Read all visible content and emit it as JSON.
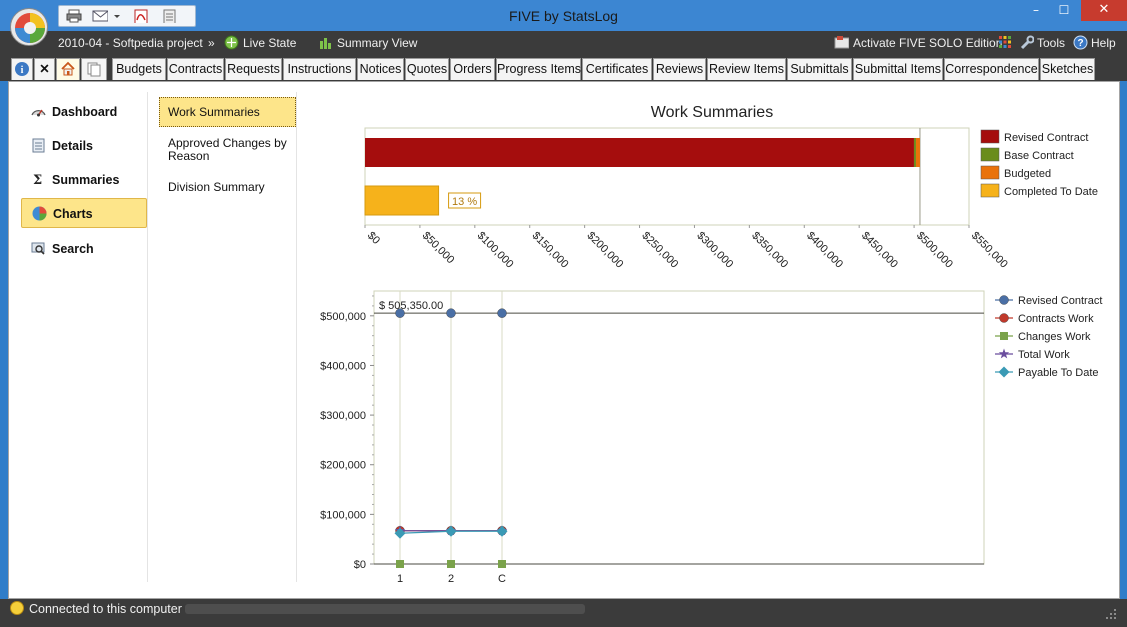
{
  "window": {
    "title": "FIVE by StatsLog",
    "controls": {
      "minimize": "–",
      "maximize": "☐",
      "close": "✕"
    }
  },
  "project_bar": {
    "project": "2010-04 - Softpedia project",
    "separator": "»",
    "live_state": "Live State",
    "summary_view": "Summary View",
    "activate": "Activate FIVE SOLO Edition",
    "tools": "Tools",
    "help": "Help"
  },
  "tabs": [
    "Budgets",
    "Contracts",
    "Requests",
    "Instructions",
    "Notices",
    "Quotes",
    "Orders",
    "Progress Items",
    "Certificates",
    "Reviews",
    "Review Items",
    "Submittals",
    "Submittal Items",
    "Correspondence",
    "Sketches"
  ],
  "icon_tabs": {
    "info": "i",
    "close": "✕"
  },
  "nav": {
    "items": [
      "Dashboard",
      "Details",
      "Summaries",
      "Charts",
      "Search"
    ],
    "active": "Charts"
  },
  "subnav": {
    "items": [
      "Work Summaries",
      "Approved Changes by Reason",
      "Division Summary"
    ],
    "active": "Work Summaries"
  },
  "status": {
    "text": "Connected to this computer"
  },
  "colors": {
    "revised_contract": "#a50d0d",
    "base_contract": "#6a8c1c",
    "budgeted": "#e9720b",
    "completed": "#f6b21b",
    "line_revised": "#4a6fa5",
    "line_contracts": "#c0392b",
    "line_changes": "#7aa24a",
    "line_total": "#6b4e9e",
    "line_payable": "#3a9ab5"
  },
  "chart_data": [
    {
      "type": "bar",
      "orientation": "horizontal",
      "title": "Work Summaries",
      "xlim": [
        0,
        550000
      ],
      "x_ticks": [
        "$0",
        "$50,000",
        "$100,000",
        "$150,000",
        "$200,000",
        "$250,000",
        "$300,000",
        "$350,000",
        "$400,000",
        "$450,000",
        "$500,000",
        "$550,000"
      ],
      "reference_line": 505350,
      "legend": [
        "Revised Contract",
        "Base Contract",
        "Budgeted",
        "Completed To Date"
      ],
      "legend_position": "right",
      "bars": [
        {
          "name": "Revised Contract",
          "value": 505350
        },
        {
          "name": "Base Contract",
          "value": 505350
        },
        {
          "name": "Budgeted",
          "value": 505350
        },
        {
          "name": "Completed To Date",
          "value": 67000,
          "label": "13 %"
        }
      ]
    },
    {
      "type": "line",
      "categories": [
        "1",
        "2",
        "C"
      ],
      "ylim": [
        0,
        550000
      ],
      "y_ticks": [
        "$0",
        "$100,000",
        "$200,000",
        "$300,000",
        "$400,000",
        "$500,000"
      ],
      "reference_line": 505350,
      "reference_label": "$ 505,350.00",
      "legend_position": "right",
      "series": [
        {
          "name": "Revised Contract",
          "values": [
            505350,
            505350,
            505350
          ]
        },
        {
          "name": "Contracts Work",
          "values": [
            67000,
            67000,
            67000
          ]
        },
        {
          "name": "Changes Work",
          "values": [
            0,
            0,
            0
          ]
        },
        {
          "name": "Total Work",
          "values": [
            67000,
            67000,
            67000
          ]
        },
        {
          "name": "Payable To Date",
          "values": [
            62000,
            66000,
            66000
          ]
        }
      ]
    }
  ]
}
